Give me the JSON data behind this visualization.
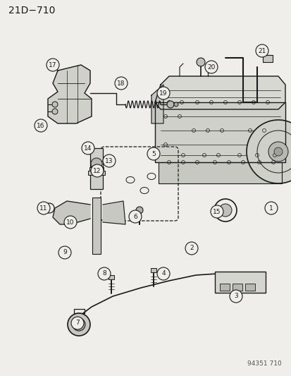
{
  "title": "21D−710",
  "catalog_number": "94351 710",
  "bg_color": "#f0eeea",
  "line_color": "#1a1a1a",
  "figsize": [
    4.14,
    5.33
  ],
  "dpi": 100,
  "label_data": [
    [
      1,
      385,
      295
    ],
    [
      2,
      272,
      352
    ],
    [
      3,
      335,
      420
    ],
    [
      4,
      232,
      388
    ],
    [
      5,
      218,
      218
    ],
    [
      6,
      192,
      307
    ],
    [
      7,
      110,
      458
    ],
    [
      8,
      148,
      388
    ],
    [
      9,
      92,
      358
    ],
    [
      10,
      100,
      315
    ],
    [
      11,
      62,
      295
    ],
    [
      12,
      138,
      242
    ],
    [
      13,
      155,
      228
    ],
    [
      14,
      125,
      210
    ],
    [
      15,
      308,
      300
    ],
    [
      16,
      58,
      178
    ],
    [
      17,
      75,
      92
    ],
    [
      18,
      172,
      118
    ],
    [
      19,
      232,
      132
    ],
    [
      20,
      300,
      95
    ],
    [
      21,
      372,
      72
    ]
  ]
}
